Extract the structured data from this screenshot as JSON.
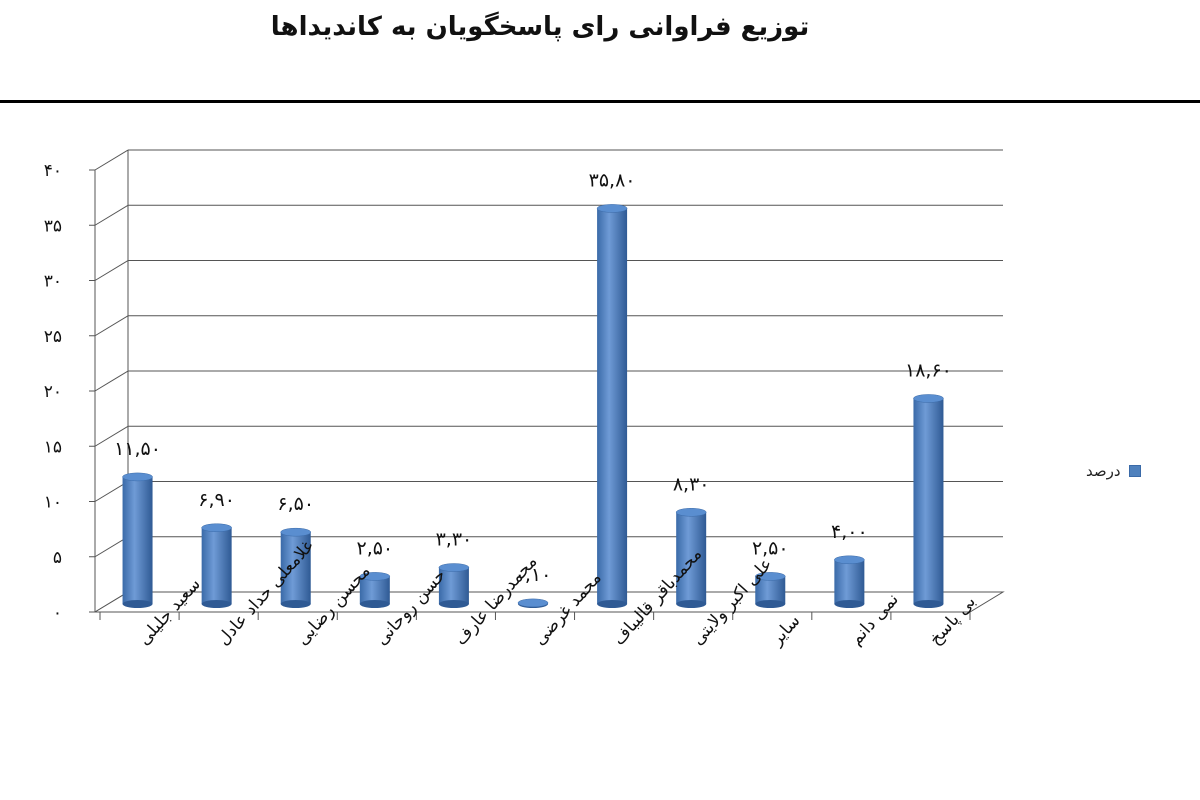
{
  "chart_data": {
    "type": "bar",
    "title": "توزیع فراوانی رای پاسخگویان به کاندیداها",
    "categories": [
      "سعید جلیلی",
      "غلامعلی حداد عادل",
      "محسن رضایی",
      "حسن روحانی",
      "محمدرضا عارف",
      "محمد غرضی",
      "محمدباقر قالیباف",
      "علی اکبر ولایتی",
      "سایر",
      "نمی دانم",
      "بی پاسخ"
    ],
    "series": [
      {
        "name": "درصد",
        "values": [
          11.5,
          6.9,
          6.5,
          2.5,
          3.3,
          0.1,
          35.8,
          8.3,
          2.5,
          4.0,
          18.6
        ]
      }
    ],
    "data_labels": [
      "۱۱,۵۰",
      "۶,۹۰",
      "۶,۵۰",
      "۲,۵۰",
      "۳,۳۰",
      "۰,۱۰",
      "۳۵,۸۰",
      "۸,۳۰",
      "۲,۵۰",
      "۴,۰۰",
      "۱۸,۶۰"
    ],
    "y_ticks": [
      0,
      5,
      10,
      15,
      20,
      25,
      30,
      35,
      40
    ],
    "y_tick_labels": [
      "۰",
      "۵",
      "۱۰",
      "۱۵",
      "۲۰",
      "۲۵",
      "۳۰",
      "۳۵",
      "۴۰"
    ],
    "ylim": [
      0,
      40
    ],
    "grid": true,
    "legend_position": "right",
    "bar_color": "#4f81bd"
  }
}
